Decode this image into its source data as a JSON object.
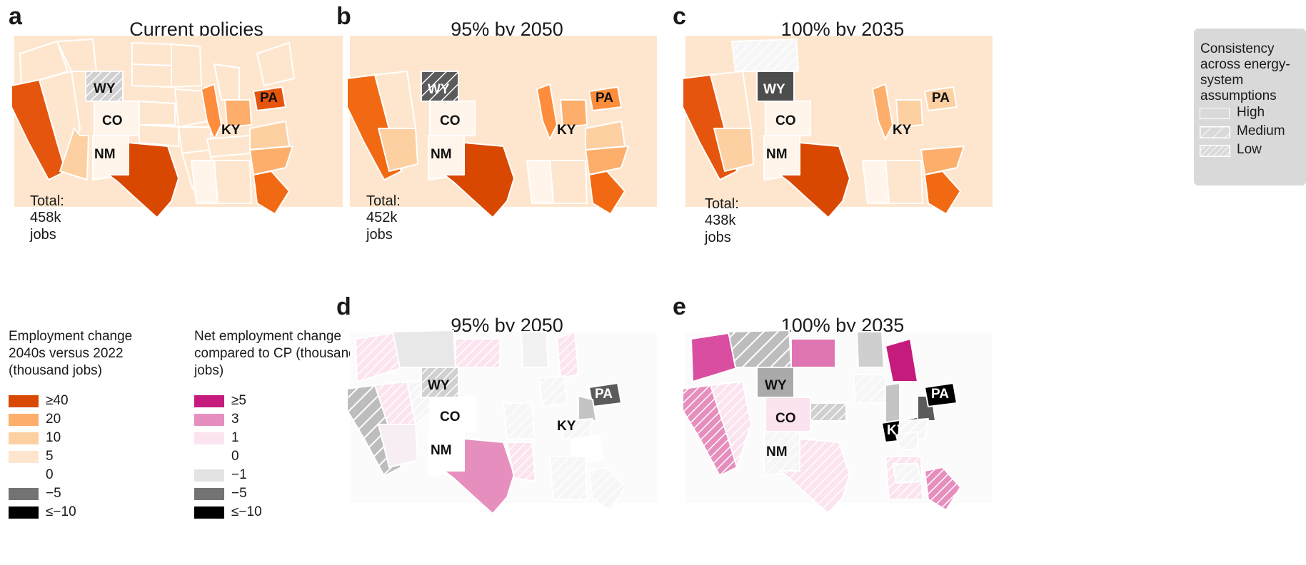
{
  "panels": [
    {
      "label": "a",
      "title": "Current policies",
      "total_label": "Total:",
      "total_value": "458k jobs"
    },
    {
      "label": "b",
      "title": "95% by 2050",
      "total_label": "Total:",
      "total_value": "452k jobs"
    },
    {
      "label": "c",
      "title": "100% by 2035",
      "total_label": "Total:",
      "total_value": "438k jobs"
    },
    {
      "label": "d",
      "title": "95% by 2050"
    },
    {
      "label": "e",
      "title": "100% by 2035"
    }
  ],
  "state_labels": [
    "WY",
    "CO",
    "NM",
    "KY",
    "PA"
  ],
  "consistency_legend": {
    "title": "Consistency across energy-system assumptions",
    "items": [
      "High",
      "Medium",
      "Low"
    ]
  },
  "employment_legend": {
    "title": "Employment change 2040s versus 2022 (thousand jobs)",
    "items": [
      {
        "label": "≥40",
        "color": "#d94801"
      },
      {
        "label": "20",
        "color": "#fdae6b"
      },
      {
        "label": "10",
        "color": "#fdd0a2"
      },
      {
        "label": "5",
        "color": "#fee6ce"
      },
      {
        "label": "0",
        "color": "#ffffff"
      },
      {
        "label": "−5",
        "color": "#737373"
      },
      {
        "label": "≤−10",
        "color": "#000000"
      }
    ]
  },
  "net_legend": {
    "title": "Net employment change compared to CP (thousand jobs)",
    "items": [
      {
        "label": "≥5",
        "color": "#c51b7d"
      },
      {
        "label": "3",
        "color": "#e68fbe"
      },
      {
        "label": "1",
        "color": "#fbe3ef"
      },
      {
        "label": "0",
        "color": "#ffffff"
      },
      {
        "label": "−1",
        "color": "#e3e3e3"
      },
      {
        "label": "−5",
        "color": "#737373"
      },
      {
        "label": "≤−10",
        "color": "#000000"
      }
    ]
  }
}
